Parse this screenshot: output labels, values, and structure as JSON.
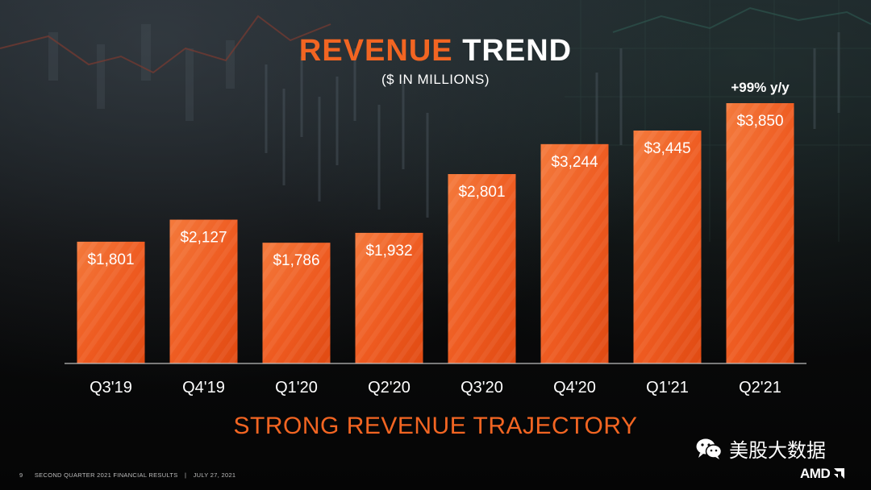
{
  "header": {
    "title_part1": "REVENUE",
    "title_part2": "TREND",
    "subtitle": "($ IN MILLIONS)"
  },
  "chart_data": {
    "type": "bar",
    "title": "REVENUE TREND",
    "subtitle": "($ IN MILLIONS)",
    "xlabel": "",
    "ylabel": "",
    "categories": [
      "Q3'19",
      "Q4'19",
      "Q1'20",
      "Q2'20",
      "Q3'20",
      "Q4'20",
      "Q1'21",
      "Q2'21"
    ],
    "values": [
      1801,
      2127,
      1786,
      1932,
      2801,
      3244,
      3445,
      3850
    ],
    "data_labels": [
      "$1,801",
      "$2,127",
      "$1,786",
      "$1,932",
      "$2,801",
      "$3,244",
      "$3,445",
      "$3,850"
    ],
    "annotation": {
      "text": "+99% y/y",
      "category": "Q2'21"
    },
    "ylim": [
      0,
      3850
    ],
    "grid": false,
    "legend": "none",
    "bar_color": "#f26522"
  },
  "tagline": "STRONG REVENUE TRAJECTORY",
  "footer": {
    "page_number": "9",
    "report": "SECOND QUARTER 2021 FINANCIAL RESULTS",
    "separator": "|",
    "date": "JULY 27, 2021"
  },
  "watermark": {
    "text": "美股大数据",
    "icon": "wechat-icon"
  },
  "logo": {
    "text": "AMD",
    "icon": "amd-arrow-icon"
  },
  "colors": {
    "accent": "#f26522",
    "background": "#060606",
    "text": "#ffffff"
  }
}
